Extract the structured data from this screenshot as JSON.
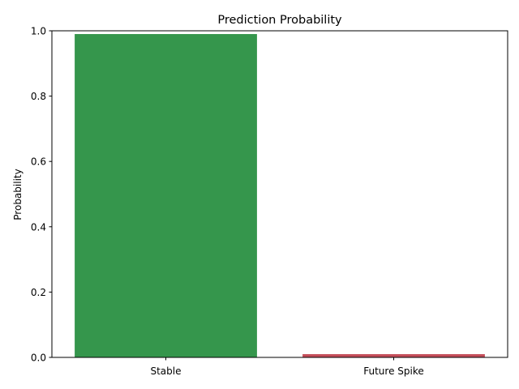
{
  "chart_data": {
    "type": "bar",
    "title": "Prediction Probability",
    "xlabel": "",
    "ylabel": "Probability",
    "categories": [
      "Stable",
      "Future Spike"
    ],
    "values": [
      0.99,
      0.01
    ],
    "colors": [
      "#35964c",
      "#c44e5a"
    ],
    "ylim": [
      0,
      1.0
    ],
    "yticks": [
      "0.0",
      "0.2",
      "0.4",
      "0.6",
      "0.8",
      "1.0"
    ],
    "grid": false,
    "legend": "none"
  }
}
